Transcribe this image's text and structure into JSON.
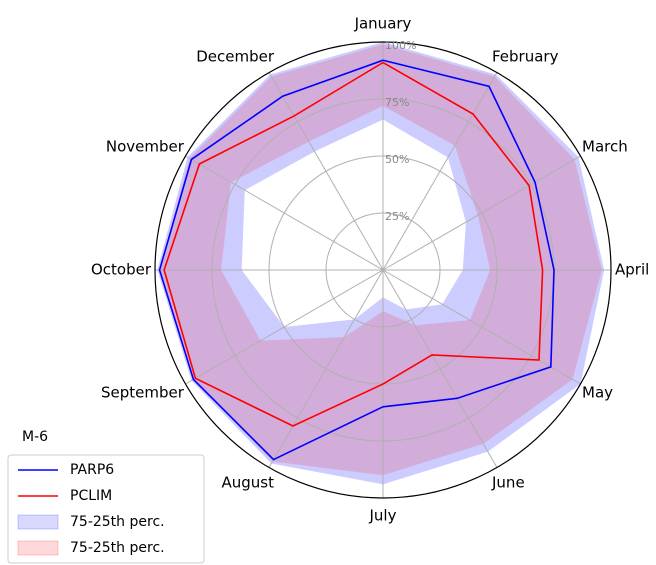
{
  "chart_data": {
    "type": "radar",
    "categories": [
      "January",
      "February",
      "March",
      "April",
      "May",
      "June",
      "July",
      "August",
      "September",
      "October",
      "November",
      "December"
    ],
    "series": [
      {
        "name": "PARP6",
        "color": "#0000ff",
        "values": [
          92,
          93,
          77,
          75,
          85,
          65,
          60,
          96,
          96,
          98,
          97,
          88
        ]
      },
      {
        "name": "PCLIM",
        "color": "#ff0000",
        "values": [
          91,
          79,
          74,
          70,
          79,
          43,
          50,
          79,
          95,
          96,
          93,
          78
        ]
      }
    ],
    "bands": [
      {
        "name": "75-25th perc.",
        "color": "#0000ff",
        "upper": [
          100,
          99,
          99,
          97,
          100,
          92,
          94,
          98,
          97,
          99,
          99,
          99
        ],
        "lower": [
          66,
          57,
          42,
          35,
          30,
          20,
          12,
          25,
          50,
          62,
          70,
          60
        ]
      },
      {
        "name": "75-25th perc.",
        "color": "#ff0000",
        "upper": [
          99,
          98,
          97,
          96,
          96,
          88,
          90,
          97,
          96,
          98,
          98,
          98
        ],
        "lower": [
          72,
          63,
          48,
          47,
          44,
          28,
          18,
          34,
          62,
          71,
          77,
          65
        ]
      }
    ],
    "ylim": [
      0,
      100
    ],
    "yticks": [
      {
        "value": 25,
        "label": "25%"
      },
      {
        "value": 50,
        "label": "50%"
      },
      {
        "value": 75,
        "label": "75%"
      },
      {
        "value": 100,
        "label": "100%"
      }
    ],
    "grid": true,
    "legend": {
      "title": "M-6",
      "position": "lower left"
    }
  }
}
